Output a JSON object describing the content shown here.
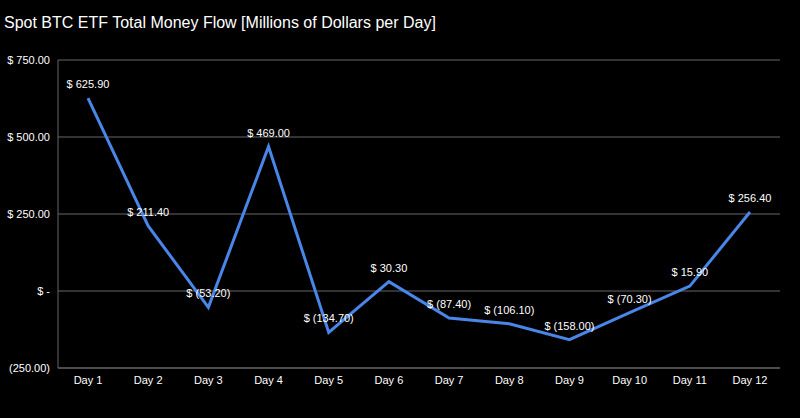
{
  "chart_data": {
    "type": "line",
    "title": "Spot BTC ETF Total Money Flow [Millions of Dollars per Day]",
    "categories": [
      "Day 1",
      "Day 2",
      "Day 3",
      "Day 4",
      "Day 5",
      "Day 6",
      "Day 7",
      "Day 8",
      "Day 9",
      "Day 10",
      "Day 11",
      "Day 12"
    ],
    "values": [
      625.9,
      211.4,
      -53.2,
      469,
      -134.7,
      30.3,
      -87.4,
      -106.1,
      -158,
      -70.3,
      15.9,
      256.4
    ],
    "value_labels": [
      "$ 625.90",
      "$ 211.40",
      "$ (53.20)",
      "$ 469.00",
      "$ (134.70)",
      "$ 30.30",
      "$ (87.40)",
      "$ (106.10)",
      "$ (158.00)",
      "$ (70.30)",
      "$ 15.90",
      "$ 256.40"
    ],
    "color": "#4a86e8",
    "ylim": [
      -250,
      750
    ],
    "yticks": [
      {
        "value": -250,
        "label": "(250.00)"
      },
      {
        "value": 0,
        "label": "$ -"
      },
      {
        "value": 250,
        "label": "$ 250.00"
      },
      {
        "value": 500,
        "label": "$ 500.00"
      },
      {
        "value": 750,
        "label": "$ 750.00"
      }
    ],
    "grid": true,
    "data_labels": true
  }
}
